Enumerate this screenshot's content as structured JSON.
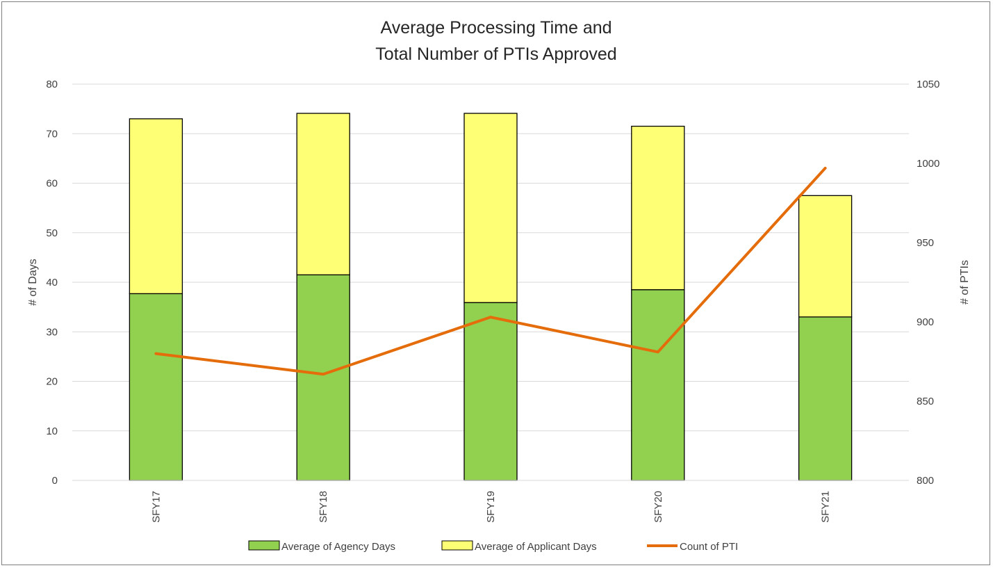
{
  "chart_data": {
    "type": "bar",
    "stacked": true,
    "title_lines": [
      "Average Processing Time and",
      "Total Number of PTIs Approved"
    ],
    "categories": [
      "SFY17",
      "SFY18",
      "SFY19",
      "SFY20",
      "SFY21"
    ],
    "series": [
      {
        "name": "Average of Agency Days",
        "type": "bar",
        "axis": "left",
        "color": "#92d050",
        "values": [
          37.7,
          41.5,
          35.9,
          38.5,
          33.0
        ]
      },
      {
        "name": "Average of Applicant Days",
        "type": "bar",
        "axis": "left",
        "color": "#ffff75",
        "values": [
          35.3,
          32.6,
          38.2,
          33.0,
          24.5
        ]
      },
      {
        "name": "Count of PTI",
        "type": "line",
        "axis": "right",
        "color": "#e46c0a",
        "values": [
          880,
          867,
          903,
          881,
          997
        ]
      }
    ],
    "ylabel": "# of Days",
    "ylim": [
      0,
      80
    ],
    "yticks": [
      "0",
      "10",
      "20",
      "30",
      "40",
      "50",
      "60",
      "70",
      "80"
    ],
    "y2label": "# of PTIs",
    "y2lim": [
      800,
      1050
    ],
    "y2ticks": [
      "800",
      "850",
      "900",
      "950",
      "1000",
      "1050"
    ],
    "grid": true,
    "legend_position": "bottom"
  }
}
